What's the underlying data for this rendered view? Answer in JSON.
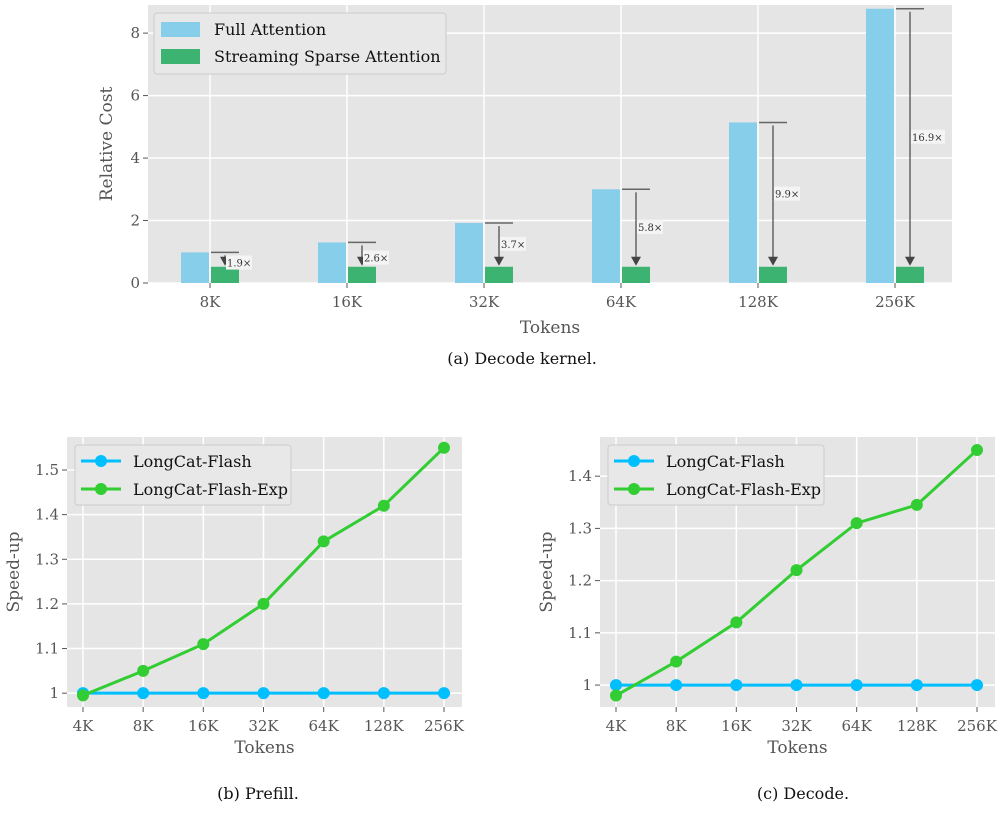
{
  "chart_data": [
    {
      "type": "bar",
      "caption": "(a) Decode kernel.",
      "xlabel": "Tokens",
      "ylabel": "Relative Cost",
      "categories": [
        "8K",
        "16K",
        "32K",
        "64K",
        "128K",
        "256K"
      ],
      "ylim": [
        0,
        8.9
      ],
      "yticks": [
        0,
        2,
        4,
        6,
        8
      ],
      "grid": true,
      "legend_position": "top-left",
      "series": [
        {
          "name": "Full Attention",
          "color": "#87CEEB",
          "values": [
            0.98,
            1.3,
            1.92,
            3.0,
            5.14,
            8.78
          ]
        },
        {
          "name": "Streaming Sparse Attention",
          "color": "#3CB371",
          "values": [
            0.52,
            0.52,
            0.52,
            0.52,
            0.52,
            0.52
          ]
        }
      ],
      "annotations": [
        "1.9×",
        "2.6×",
        "3.7×",
        "5.8×",
        "9.9×",
        "16.9×"
      ]
    },
    {
      "type": "line",
      "caption": "(b) Prefill.",
      "xlabel": "Tokens",
      "ylabel": "Speed-up",
      "categories": [
        "4K",
        "8K",
        "16K",
        "32K",
        "64K",
        "128K",
        "256K"
      ],
      "ylim": [
        0.969,
        1.574
      ],
      "yticks": [
        1.0,
        1.1,
        1.2,
        1.3,
        1.4,
        1.5
      ],
      "grid": true,
      "legend_position": "top-left",
      "series": [
        {
          "name": "LongCat-Flash",
          "color": "#00BFFF",
          "values": [
            1,
            1,
            1,
            1,
            1,
            1,
            1
          ]
        },
        {
          "name": "LongCat-Flash-Exp",
          "color": "#32CD32",
          "values": [
            0.995,
            1.05,
            1.11,
            1.2,
            1.34,
            1.42,
            1.55
          ]
        }
      ]
    },
    {
      "type": "line",
      "caption": "(c) Decode.",
      "xlabel": "Tokens",
      "ylabel": "Speed-up",
      "categories": [
        "4K",
        "8K",
        "16K",
        "32K",
        "64K",
        "128K",
        "256K"
      ],
      "ylim": [
        0.958,
        1.475
      ],
      "yticks": [
        1.0,
        1.1,
        1.2,
        1.3,
        1.4
      ],
      "grid": true,
      "legend_position": "top-left",
      "series": [
        {
          "name": "LongCat-Flash",
          "color": "#00BFFF",
          "values": [
            1,
            1,
            1,
            1,
            1,
            1,
            1
          ]
        },
        {
          "name": "LongCat-Flash-Exp",
          "color": "#32CD32",
          "values": [
            0.98,
            1.045,
            1.12,
            1.22,
            1.31,
            1.345,
            1.45
          ]
        }
      ]
    }
  ]
}
